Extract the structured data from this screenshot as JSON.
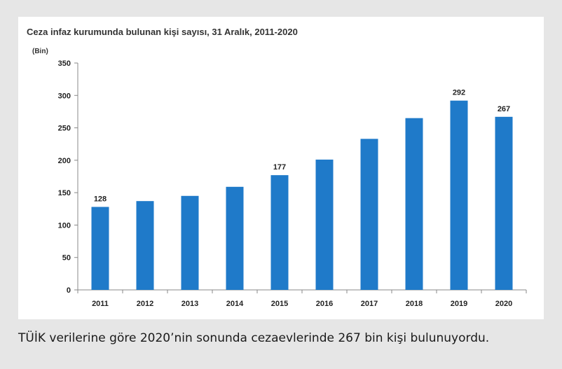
{
  "chart_data": {
    "type": "bar",
    "title": "Ceza infaz kurumunda bulunan kişi sayısı, 31 Aralık, 2011-2020",
    "ylabel": "(Bin)",
    "xlabel": "",
    "categories": [
      "2011",
      "2012",
      "2013",
      "2014",
      "2015",
      "2016",
      "2017",
      "2018",
      "2019",
      "2020"
    ],
    "values": [
      128,
      137,
      145,
      159,
      177,
      201,
      233,
      265,
      292,
      267
    ],
    "data_labels": {
      "2011": "128",
      "2015": "177",
      "2019": "292",
      "2020": "267"
    },
    "ylim": [
      0,
      350
    ],
    "yticks": [
      "0",
      "50",
      "100",
      "150",
      "200",
      "250",
      "300",
      "350"
    ],
    "grid": false,
    "bar_color": "#1f7ac9"
  },
  "caption": "TÜİK verilerine göre 2020’nin sonunda cezaevlerinde 267 bin kişi bulunuyordu."
}
